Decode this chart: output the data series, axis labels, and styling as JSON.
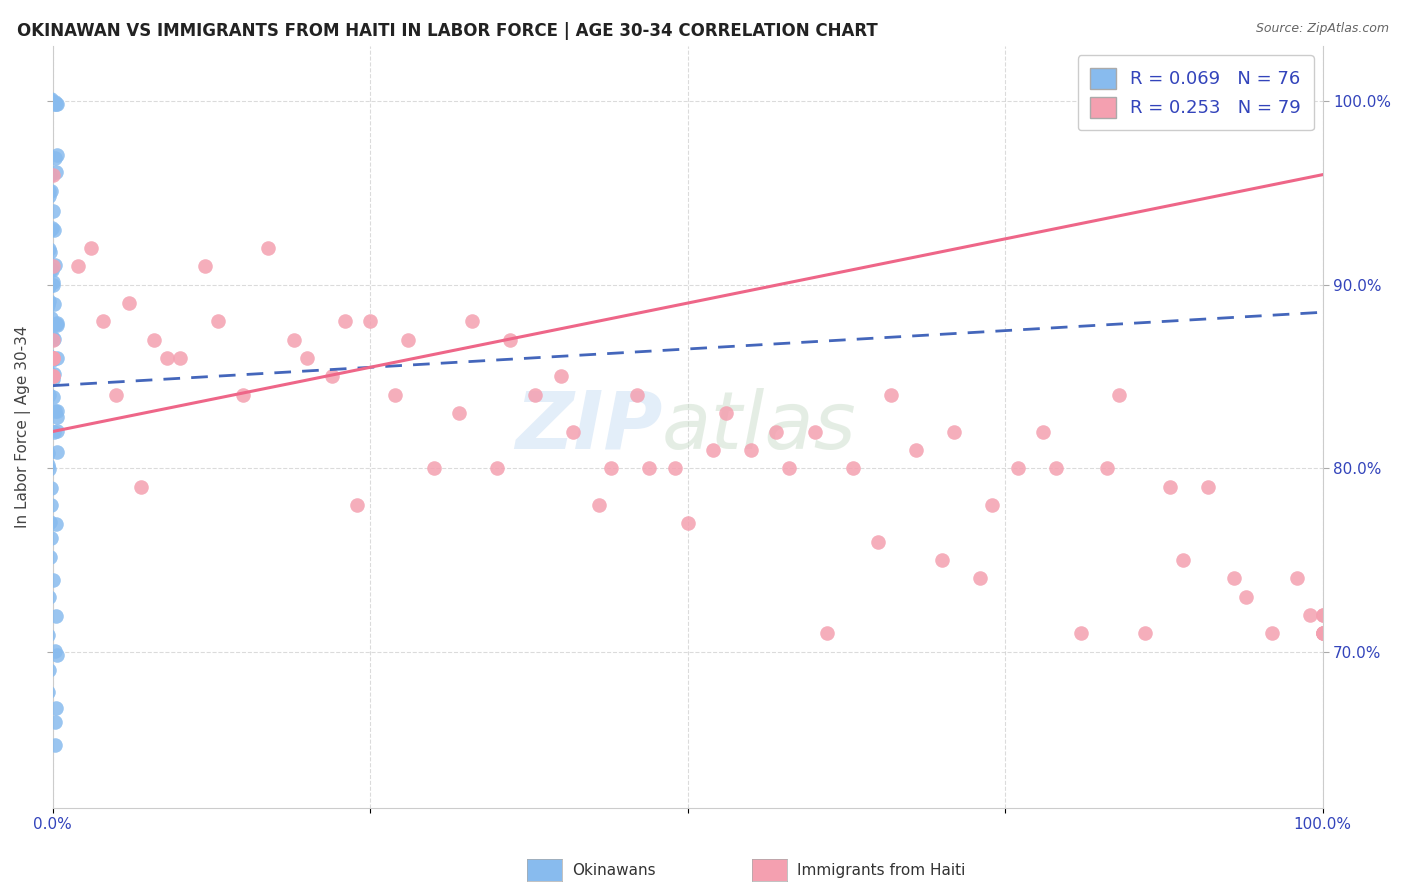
{
  "title": "OKINAWAN VS IMMIGRANTS FROM HAITI IN LABOR FORCE | AGE 30-34 CORRELATION CHART",
  "source": "Source: ZipAtlas.com",
  "ylabel": "In Labor Force | Age 30-34",
  "blue_R": 0.069,
  "blue_N": 76,
  "pink_R": 0.253,
  "pink_N": 79,
  "blue_color": "#88bbee",
  "pink_color": "#f4a0b0",
  "blue_line_color": "#4466bb",
  "pink_line_color": "#ee6688",
  "xlim": [
    0.0,
    1.0
  ],
  "ylim": [
    0.615,
    1.03
  ],
  "blue_trend_x": [
    0.0,
    1.0
  ],
  "blue_trend_y": [
    0.845,
    0.885
  ],
  "pink_trend_x": [
    0.0,
    1.0
  ],
  "pink_trend_y": [
    0.82,
    0.96
  ],
  "blue_x": [
    0.0,
    0.0,
    0.0,
    0.0,
    0.0,
    0.0,
    0.0,
    0.0,
    0.0,
    0.0,
    0.0,
    0.0,
    0.0,
    0.0,
    0.0,
    0.0,
    0.0,
    0.0,
    0.0,
    0.0,
    0.0,
    0.0,
    0.0,
    0.0,
    0.0,
    0.0,
    0.0,
    0.0,
    0.0,
    0.0,
    0.0,
    0.0,
    0.0,
    0.0,
    0.0,
    0.0,
    0.0,
    0.0,
    0.0,
    0.0,
    0.0,
    0.0,
    0.0,
    0.0,
    0.0,
    0.0,
    0.0,
    0.0,
    0.0,
    0.0,
    0.0,
    0.0,
    0.0,
    0.0,
    0.0,
    0.0,
    0.0,
    0.0,
    0.0,
    0.0,
    0.0,
    0.0,
    0.0,
    0.0,
    0.0,
    0.0,
    0.0,
    0.0,
    0.0,
    0.0,
    0.0,
    0.0,
    0.0,
    0.0,
    0.0,
    0.0
  ],
  "blue_y": [
    1.0,
    1.0,
    1.0,
    1.0,
    1.0,
    1.0,
    1.0,
    1.0,
    1.0,
    0.97,
    0.97,
    0.97,
    0.96,
    0.96,
    0.95,
    0.95,
    0.95,
    0.94,
    0.93,
    0.93,
    0.93,
    0.92,
    0.92,
    0.91,
    0.91,
    0.91,
    0.9,
    0.9,
    0.9,
    0.9,
    0.89,
    0.89,
    0.89,
    0.88,
    0.88,
    0.88,
    0.88,
    0.87,
    0.87,
    0.87,
    0.86,
    0.86,
    0.86,
    0.86,
    0.85,
    0.85,
    0.85,
    0.85,
    0.84,
    0.84,
    0.83,
    0.83,
    0.83,
    0.82,
    0.82,
    0.81,
    0.81,
    0.8,
    0.8,
    0.79,
    0.78,
    0.77,
    0.77,
    0.76,
    0.75,
    0.74,
    0.73,
    0.72,
    0.71,
    0.7,
    0.7,
    0.69,
    0.68,
    0.67,
    0.66,
    0.65
  ],
  "pink_x": [
    0.0,
    0.0,
    0.0,
    0.0,
    0.0,
    0.0,
    0.0,
    0.0,
    0.02,
    0.03,
    0.04,
    0.05,
    0.06,
    0.07,
    0.08,
    0.09,
    0.1,
    0.12,
    0.13,
    0.15,
    0.17,
    0.19,
    0.2,
    0.22,
    0.23,
    0.24,
    0.25,
    0.27,
    0.28,
    0.3,
    0.32,
    0.33,
    0.35,
    0.36,
    0.38,
    0.4,
    0.41,
    0.43,
    0.44,
    0.46,
    0.47,
    0.49,
    0.5,
    0.52,
    0.53,
    0.55,
    0.57,
    0.58,
    0.6,
    0.61,
    0.63,
    0.65,
    0.66,
    0.68,
    0.7,
    0.71,
    0.73,
    0.74,
    0.76,
    0.78,
    0.79,
    0.81,
    0.83,
    0.84,
    0.86,
    0.88,
    0.89,
    0.91,
    0.93,
    0.94,
    0.96,
    0.98,
    0.99,
    1.0,
    1.0,
    1.0,
    1.0,
    1.0,
    1.0
  ],
  "pink_y": [
    0.86,
    0.86,
    0.85,
    0.85,
    0.86,
    0.87,
    0.96,
    0.91,
    0.91,
    0.92,
    0.88,
    0.84,
    0.89,
    0.79,
    0.87,
    0.86,
    0.86,
    0.91,
    0.88,
    0.84,
    0.92,
    0.87,
    0.86,
    0.85,
    0.88,
    0.78,
    0.88,
    0.84,
    0.87,
    0.8,
    0.83,
    0.88,
    0.8,
    0.87,
    0.84,
    0.85,
    0.82,
    0.78,
    0.8,
    0.84,
    0.8,
    0.8,
    0.77,
    0.81,
    0.83,
    0.81,
    0.82,
    0.8,
    0.82,
    0.71,
    0.8,
    0.76,
    0.84,
    0.81,
    0.75,
    0.82,
    0.74,
    0.78,
    0.8,
    0.82,
    0.8,
    0.71,
    0.8,
    0.84,
    0.71,
    0.79,
    0.75,
    0.79,
    0.74,
    0.73,
    0.71,
    0.74,
    0.72,
    0.71,
    0.71,
    0.72,
    0.72,
    0.71,
    0.71
  ],
  "xtick_positions": [
    0.0,
    0.25,
    0.5,
    0.75,
    1.0
  ],
  "xtick_labels": [
    "0.0%",
    "",
    "",
    "",
    "100.0%"
  ],
  "right_ytick_positions": [
    0.7,
    0.8,
    0.9,
    1.0
  ],
  "right_ytick_labels": [
    "70.0%",
    "80.0%",
    "90.0%",
    "100.0%"
  ],
  "bottom_legend": [
    {
      "label": "Okinawans",
      "color": "#88bbee"
    },
    {
      "label": "Immigrants from Haiti",
      "color": "#f4a0b0"
    }
  ]
}
